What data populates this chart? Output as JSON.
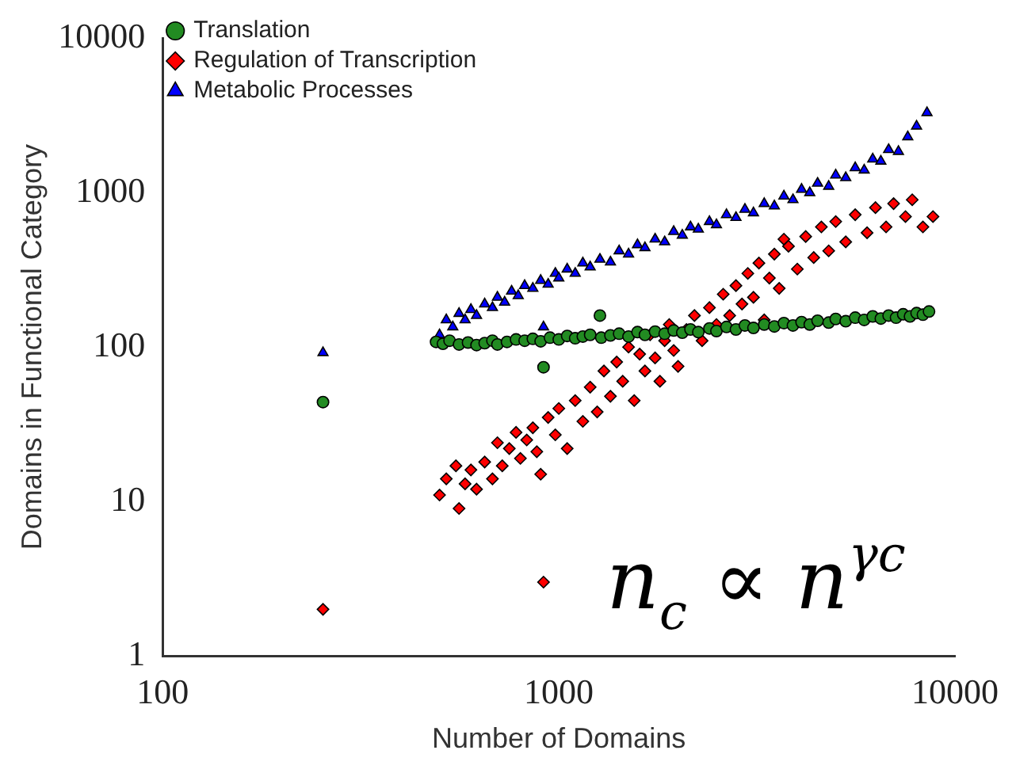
{
  "chart_data": {
    "type": "scatter",
    "xlabel": "Number of Domains",
    "ylabel": "Domains in Functional Category",
    "log": "xy",
    "xlim": [
      100,
      10000
    ],
    "ylim": [
      1,
      10000
    ],
    "xticks": [
      100,
      1000,
      10000
    ],
    "yticks": [
      1,
      10,
      100,
      1000,
      10000
    ],
    "grid": false,
    "legend": "top left",
    "annotations": [
      "n$_{c}$ ∝ n$^{γc}$"
    ],
    "series": [
      {
        "name": "Translation",
        "color": "#228b22",
        "marker": "circle",
        "x": [
          254,
          915,
          490,
          510,
          530,
          560,
          590,
          620,
          650,
          680,
          700,
          740,
          780,
          820,
          860,
          900,
          950,
          1000,
          1050,
          1100,
          1150,
          1200,
          1270,
          1280,
          1350,
          1420,
          1500,
          1580,
          1650,
          1750,
          1850,
          1950,
          2050,
          2150,
          2250,
          2400,
          2500,
          2650,
          2800,
          2950,
          3100,
          3300,
          3500,
          3700,
          3900,
          4100,
          4300,
          4500,
          4800,
          5000,
          5300,
          5600,
          5900,
          6200,
          6500,
          6800,
          7100,
          7400,
          7700,
          8000,
          8300,
          8600
        ],
        "values": [
          44,
          74,
          108,
          105,
          110,
          104,
          107,
          103,
          106,
          110,
          104,
          108,
          112,
          110,
          113,
          109,
          115,
          112,
          118,
          114,
          117,
          120,
          160,
          115,
          119,
          122,
          117,
          125,
          120,
          126,
          122,
          128,
          124,
          130,
          125,
          132,
          127,
          135,
          130,
          138,
          133,
          140,
          136,
          143,
          138,
          145,
          140,
          148,
          144,
          152,
          147,
          155,
          150,
          158,
          153,
          160,
          155,
          163,
          158,
          166,
          162,
          170
        ]
      },
      {
        "name": "Regulation of Transcription",
        "color": "#ff0000",
        "marker": "diamond",
        "x": [
          254,
          915,
          500,
          520,
          550,
          560,
          580,
          600,
          620,
          650,
          680,
          700,
          720,
          750,
          780,
          800,
          830,
          860,
          880,
          900,
          940,
          980,
          1000,
          1050,
          1100,
          1150,
          1200,
          1250,
          1300,
          1350,
          1400,
          1450,
          1500,
          1550,
          1600,
          1650,
          1700,
          1750,
          1800,
          1850,
          1900,
          1950,
          2000,
          2100,
          2200,
          2300,
          2400,
          2500,
          2600,
          2700,
          2800,
          2900,
          3000,
          3100,
          3200,
          3300,
          3400,
          3500,
          3600,
          3700,
          3800,
          4000,
          4200,
          4400,
          4600,
          4800,
          5000,
          5300,
          5600,
          6000,
          6300,
          6700,
          7000,
          7500,
          7800,
          8300,
          8800
        ],
        "values": [
          2,
          3,
          11,
          14,
          17,
          9,
          13,
          16,
          12,
          18,
          14,
          24,
          17,
          22,
          28,
          19,
          25,
          30,
          21,
          15,
          35,
          27,
          40,
          22,
          45,
          33,
          55,
          38,
          70,
          48,
          80,
          60,
          100,
          45,
          90,
          70,
          120,
          85,
          60,
          110,
          140,
          95,
          75,
          130,
          160,
          110,
          180,
          140,
          220,
          160,
          250,
          190,
          300,
          210,
          350,
          150,
          280,
          400,
          240,
          500,
          450,
          320,
          520,
          380,
          600,
          420,
          650,
          480,
          720,
          550,
          800,
          600,
          850,
          700,
          900,
          600,
          700
        ]
      },
      {
        "name": "Metabolic Processes",
        "color": "#0000ff",
        "marker": "triangle",
        "x": [
          254,
          915,
          500,
          520,
          540,
          560,
          580,
          600,
          620,
          650,
          680,
          700,
          730,
          760,
          790,
          820,
          860,
          900,
          940,
          980,
          1000,
          1050,
          1100,
          1150,
          1200,
          1270,
          1350,
          1420,
          1500,
          1580,
          1650,
          1750,
          1850,
          1950,
          2050,
          2150,
          2250,
          2400,
          2500,
          2650,
          2800,
          2950,
          3100,
          3300,
          3500,
          3700,
          3900,
          4100,
          4300,
          4500,
          4800,
          5000,
          5300,
          5600,
          5900,
          6200,
          6500,
          6800,
          7200,
          7600,
          8000,
          8500
        ],
        "values": [
          92,
          135,
          120,
          150,
          135,
          165,
          150,
          175,
          160,
          190,
          180,
          210,
          195,
          230,
          215,
          250,
          240,
          270,
          255,
          300,
          280,
          320,
          300,
          350,
          330,
          370,
          355,
          420,
          400,
          460,
          440,
          500,
          480,
          560,
          530,
          600,
          580,
          650,
          620,
          720,
          690,
          780,
          740,
          850,
          820,
          950,
          900,
          1050,
          1000,
          1150,
          1100,
          1300,
          1250,
          1450,
          1400,
          1650,
          1600,
          1900,
          1850,
          2300,
          2700,
          3300
        ]
      }
    ]
  }
}
